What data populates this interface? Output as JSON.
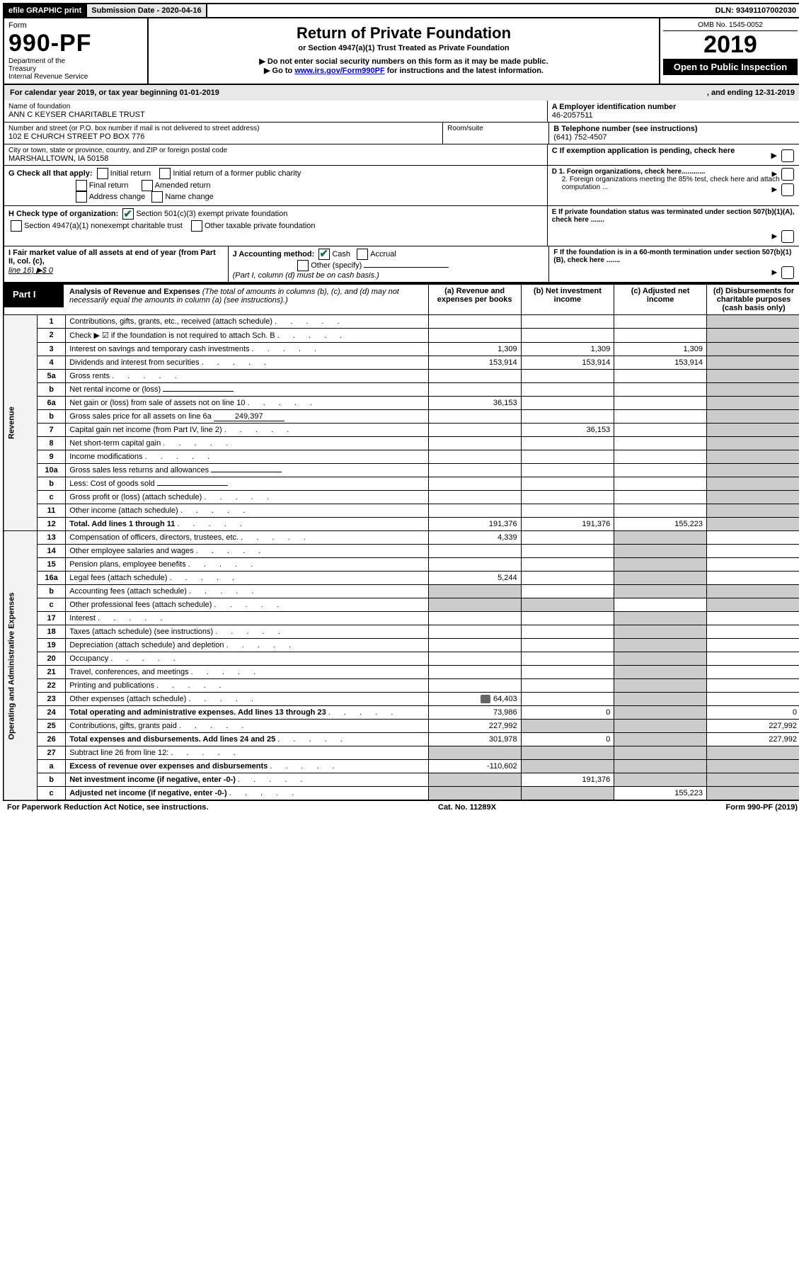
{
  "topbar": {
    "efile": "efile GRAPHIC print",
    "sub_label": "Submission Date - 2020-04-16",
    "dln": "DLN: 93491107002030"
  },
  "header": {
    "form_word": "Form",
    "form_num": "990-PF",
    "dept1": "Department of the",
    "dept2": "Treasury",
    "dept3": "Internal Revenue Service",
    "title": "Return of Private Foundation",
    "subtitle": "or Section 4947(a)(1) Trust Treated as Private Foundation",
    "note1": "▶ Do not enter social security numbers on this form as it may be made public.",
    "note2_pre": "▶ Go to ",
    "note2_link": "www.irs.gov/Form990PF",
    "note2_post": " for instructions and the latest information.",
    "omb": "OMB No. 1545-0052",
    "year": "2019",
    "open": "Open to Public Inspection"
  },
  "cal": {
    "text_l": "For calendar year 2019, or tax year beginning 01-01-2019",
    "text_r": ", and ending 12-31-2019"
  },
  "info": {
    "name_lbl": "Name of foundation",
    "name_val": "ANN C KEYSER CHARITABLE TRUST",
    "addr_lbl": "Number and street (or P.O. box number if mail is not delivered to street address)",
    "room_lbl": "Room/suite",
    "addr_val": "102 E CHURCH STREET PO BOX 776",
    "city_lbl": "City or town, state or province, country, and ZIP or foreign postal code",
    "city_val": "MARSHALLTOWN, IA  50158",
    "ein_lbl": "A Employer identification number",
    "ein_val": "46-2057511",
    "phone_lbl": "B Telephone number (see instructions)",
    "phone_val": "(641) 752-4507",
    "c_lbl": "C If exemption application is pending, check here",
    "g_lbl": "G Check all that apply:",
    "g_initial": "Initial return",
    "g_initial_former": "Initial return of a former public charity",
    "g_final": "Final return",
    "g_amended": "Amended return",
    "g_address": "Address change",
    "g_name": "Name change",
    "d1": "D 1. Foreign organizations, check here............",
    "d2": "2. Foreign organizations meeting the 85% test, check here and attach computation ...",
    "e": "E If private foundation status was terminated under section 507(b)(1)(A), check here .......",
    "h_lbl": "H Check type of organization:",
    "h_501": "Section 501(c)(3) exempt private foundation",
    "h_4947": "Section 4947(a)(1) nonexempt charitable trust",
    "h_other": "Other taxable private foundation",
    "f": "F If the foundation is in a 60-month termination under section 507(b)(1)(B), check here .......",
    "i_lbl": "I Fair market value of all assets at end of year (from Part II, col. (c),",
    "i_line": "line 16) ▶$ 0",
    "j_lbl": "J Accounting method:",
    "j_cash": "Cash",
    "j_accrual": "Accrual",
    "j_other": "Other (specify)",
    "j_note": "(Part I, column (d) must be on cash basis.)"
  },
  "part1": {
    "label": "Part I",
    "title": "Analysis of Revenue and Expenses",
    "title_note": " (The total of amounts in columns (b), (c), and (d) may not necessarily equal the amounts in column (a) (see instructions).)",
    "cols": {
      "a": "(a) Revenue and expenses per books",
      "b": "(b) Net investment income",
      "c": "(c) Adjusted net income",
      "d": "(d) Disbursements for charitable purposes (cash basis only)"
    }
  },
  "sections": {
    "revenue": "Revenue",
    "expenses": "Operating and Administrative Expenses"
  },
  "rows": [
    {
      "n": "1",
      "t": "Contributions, gifts, grants, etc., received (attach schedule)",
      "a": "",
      "b": "",
      "c": "",
      "d": ""
    },
    {
      "n": "2",
      "t": "Check ▶ ☑ if the foundation is not required to attach Sch. B",
      "a": "",
      "b": "",
      "c": "",
      "d": "",
      "b_shade": false,
      "check": true
    },
    {
      "n": "3",
      "t": "Interest on savings and temporary cash investments",
      "a": "1,309",
      "b": "1,309",
      "c": "1,309",
      "d": ""
    },
    {
      "n": "4",
      "t": "Dividends and interest from securities",
      "a": "153,914",
      "b": "153,914",
      "c": "153,914",
      "d": ""
    },
    {
      "n": "5a",
      "t": "Gross rents",
      "a": "",
      "b": "",
      "c": "",
      "d": ""
    },
    {
      "n": "b",
      "t": "Net rental income or (loss)",
      "a": "",
      "b": "",
      "c": "",
      "d": "",
      "inline": true
    },
    {
      "n": "6a",
      "t": "Net gain or (loss) from sale of assets not on line 10",
      "a": "36,153",
      "b": "",
      "c": "",
      "d": ""
    },
    {
      "n": "b",
      "t": "Gross sales price for all assets on line 6a",
      "a": "",
      "b": "",
      "c": "",
      "d": "",
      "inline_v": "249,397"
    },
    {
      "n": "7",
      "t": "Capital gain net income (from Part IV, line 2)",
      "a": "",
      "b": "36,153",
      "c": "",
      "d": ""
    },
    {
      "n": "8",
      "t": "Net short-term capital gain",
      "a": "",
      "b": "",
      "c": "",
      "d": ""
    },
    {
      "n": "9",
      "t": "Income modifications",
      "a": "",
      "b": "",
      "c": "",
      "d": ""
    },
    {
      "n": "10a",
      "t": "Gross sales less returns and allowances",
      "a": "",
      "b": "",
      "c": "",
      "d": "",
      "inline": true
    },
    {
      "n": "b",
      "t": "Less: Cost of goods sold",
      "a": "",
      "b": "",
      "c": "",
      "d": "",
      "inline": true
    },
    {
      "n": "c",
      "t": "Gross profit or (loss) (attach schedule)",
      "a": "",
      "b": "",
      "c": "",
      "d": ""
    },
    {
      "n": "11",
      "t": "Other income (attach schedule)",
      "a": "",
      "b": "",
      "c": "",
      "d": ""
    },
    {
      "n": "12",
      "t": "Total. Add lines 1 through 11",
      "a": "191,376",
      "b": "191,376",
      "c": "155,223",
      "d": "",
      "bold": true
    }
  ],
  "erows": [
    {
      "n": "13",
      "t": "Compensation of officers, directors, trustees, etc.",
      "a": "4,339",
      "b": "",
      "c": "",
      "d": ""
    },
    {
      "n": "14",
      "t": "Other employee salaries and wages",
      "a": "",
      "b": "",
      "c": "",
      "d": ""
    },
    {
      "n": "15",
      "t": "Pension plans, employee benefits",
      "a": "",
      "b": "",
      "c": "",
      "d": ""
    },
    {
      "n": "16a",
      "t": "Legal fees (attach schedule)",
      "a": "5,244",
      "b": "",
      "c": "",
      "d": ""
    },
    {
      "n": "b",
      "t": "Accounting fees (attach schedule)",
      "a": "",
      "b": "",
      "c": "",
      "d": ""
    },
    {
      "n": "c",
      "t": "Other professional fees (attach schedule)",
      "a": "",
      "b": "",
      "c": "",
      "d": ""
    },
    {
      "n": "17",
      "t": "Interest",
      "a": "",
      "b": "",
      "c": "",
      "d": ""
    },
    {
      "n": "18",
      "t": "Taxes (attach schedule) (see instructions)",
      "a": "",
      "b": "",
      "c": "",
      "d": ""
    },
    {
      "n": "19",
      "t": "Depreciation (attach schedule) and depletion",
      "a": "",
      "b": "",
      "c": "",
      "d": ""
    },
    {
      "n": "20",
      "t": "Occupancy",
      "a": "",
      "b": "",
      "c": "",
      "d": ""
    },
    {
      "n": "21",
      "t": "Travel, conferences, and meetings",
      "a": "",
      "b": "",
      "c": "",
      "d": ""
    },
    {
      "n": "22",
      "t": "Printing and publications",
      "a": "",
      "b": "",
      "c": "",
      "d": ""
    },
    {
      "n": "23",
      "t": "Other expenses (attach schedule)",
      "a": "64,403",
      "b": "",
      "c": "",
      "d": "",
      "icon": true
    },
    {
      "n": "24",
      "t": "Total operating and administrative expenses. Add lines 13 through 23",
      "a": "73,986",
      "b": "0",
      "c": "",
      "d": "0",
      "bold": true
    },
    {
      "n": "25",
      "t": "Contributions, gifts, grants paid",
      "a": "227,992",
      "b": "",
      "c": "",
      "d": "227,992"
    },
    {
      "n": "26",
      "t": "Total expenses and disbursements. Add lines 24 and 25",
      "a": "301,978",
      "b": "0",
      "c": "",
      "d": "227,992",
      "bold": true
    },
    {
      "n": "27",
      "t": "Subtract line 26 from line 12:",
      "a": "",
      "b": "",
      "c": "",
      "d": ""
    },
    {
      "n": "a",
      "t": "Excess of revenue over expenses and disbursements",
      "a": "-110,602",
      "b": "",
      "c": "",
      "d": "",
      "bold": true
    },
    {
      "n": "b",
      "t": "Net investment income (if negative, enter -0-)",
      "a": "",
      "b": "191,376",
      "c": "",
      "d": "",
      "bold": true
    },
    {
      "n": "c",
      "t": "Adjusted net income (if negative, enter -0-)",
      "a": "",
      "b": "",
      "c": "155,223",
      "d": "",
      "bold": true
    }
  ],
  "footer": {
    "left": "For Paperwork Reduction Act Notice, see instructions.",
    "mid": "Cat. No. 11289X",
    "right": "Form 990-PF (2019)"
  },
  "colors": {
    "shade": "#cccccc",
    "link": "#0000cc",
    "check": "#0a7a3a"
  }
}
